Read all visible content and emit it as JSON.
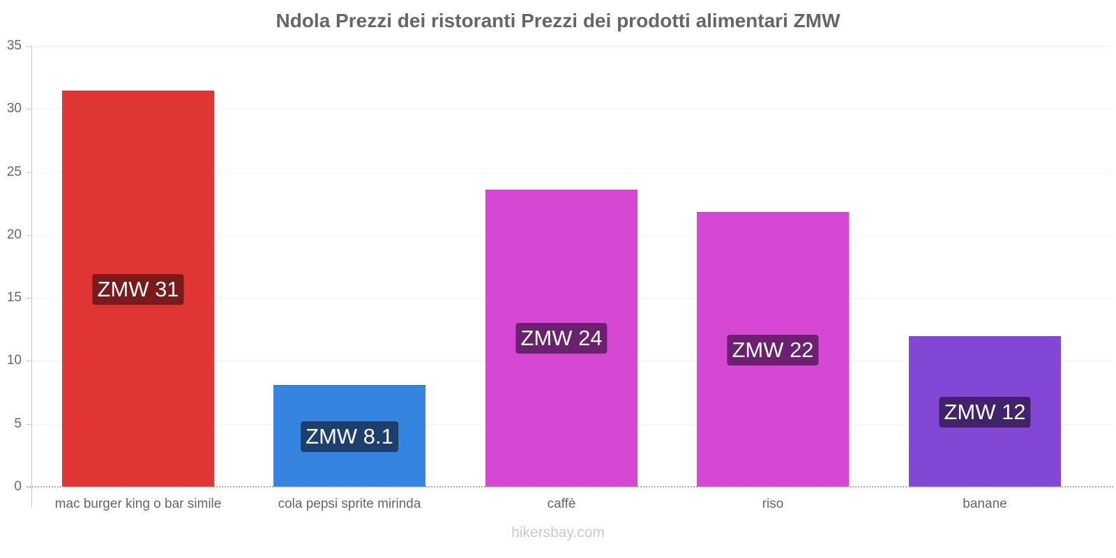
{
  "title": "Ndola Prezzi dei ristoranti Prezzi dei prodotti alimentari ZMW",
  "footer": "hikersbay.com",
  "yaxis": {
    "ticks": [
      "0",
      "5",
      "10",
      "15",
      "20",
      "25",
      "30",
      "35"
    ]
  },
  "bars": [
    {
      "category": "mac burger king o bar simile",
      "value": 31.45,
      "label": "ZMW 31",
      "color": "#e03535",
      "label_bg": "#7a1a1a"
    },
    {
      "category": "cola pepsi sprite mirinda",
      "value": 8.08,
      "label": "ZMW 8.1",
      "color": "#3584e0",
      "label_bg": "#1c3f6e"
    },
    {
      "category": "caffè",
      "value": 23.6,
      "label": "ZMW 24",
      "color": "#d647d3",
      "label_bg": "#6b2170"
    },
    {
      "category": "riso",
      "value": 21.8,
      "label": "ZMW 22",
      "color": "#d647d3",
      "label_bg": "#6b2170"
    },
    {
      "category": "banane",
      "value": 11.96,
      "label": "ZMW 12",
      "color": "#8347d6",
      "label_bg": "#40236b"
    }
  ],
  "chart_data": {
    "type": "bar",
    "title": "Ndola Prezzi dei ristoranti Prezzi dei prodotti alimentari ZMW",
    "categories": [
      "mac burger king o bar simile",
      "cola pepsi sprite mirinda",
      "caffè",
      "riso",
      "banane"
    ],
    "values": [
      31.45,
      8.08,
      23.6,
      21.8,
      11.96
    ],
    "data_labels": [
      "ZMW 31",
      "ZMW 8.1",
      "ZMW 24",
      "ZMW 22",
      "ZMW 12"
    ],
    "colors": [
      "#e03535",
      "#3584e0",
      "#d647d3",
      "#d647d3",
      "#8347d6"
    ],
    "xlabel": "",
    "ylabel": "",
    "ylim": [
      0,
      35
    ],
    "yticks": [
      0,
      5,
      10,
      15,
      20,
      25,
      30,
      35
    ],
    "grid": true,
    "legend": "none",
    "footer": "hikersbay.com"
  }
}
